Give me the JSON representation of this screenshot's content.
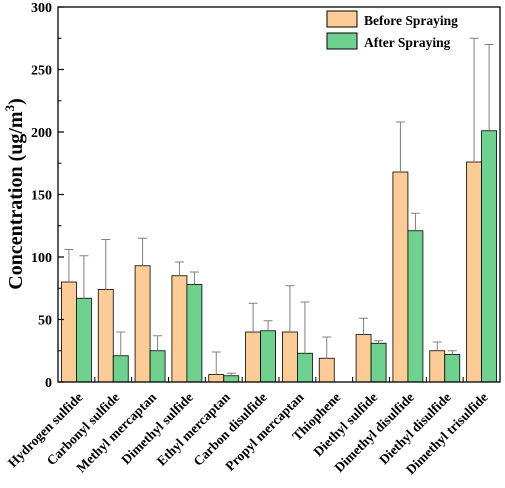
{
  "chart_data": {
    "type": "bar",
    "ylabel": "Concentration (ug/m³)",
    "ylabel_parts": {
      "main": "Concentration (ug/m",
      "sup": "3",
      "close": ")"
    },
    "ylim": [
      0,
      300
    ],
    "yticks": [
      0,
      50,
      100,
      150,
      200,
      250,
      300
    ],
    "categories": [
      "Hydrogen sulfide",
      "Carbonyl sulfide",
      "Methyl mercaptan",
      "Dimethyl sulfide",
      "Ethyl mercaptan",
      "Carbon disulfide",
      "Propyl mercaptan",
      "Thiophene",
      "Diethyl sulfide",
      "Dimethyl disulfide",
      "Diethyl disulfide",
      "Dimethyl trisulfide"
    ],
    "series": [
      {
        "name": "Before Spraying",
        "color": "#FDCC96",
        "values": [
          80,
          74,
          93,
          85,
          6,
          40,
          40,
          19,
          38,
          168,
          25,
          176
        ],
        "error": [
          26,
          40,
          22,
          11,
          18,
          23,
          37,
          17,
          13,
          40,
          7,
          99
        ]
      },
      {
        "name": "After Spraying",
        "color": "#6FD18E",
        "values": [
          67,
          21,
          25,
          78,
          5,
          41,
          23,
          0,
          31,
          121,
          22,
          201
        ],
        "error": [
          34,
          19,
          12,
          10,
          2,
          8,
          41,
          0,
          2,
          14,
          3,
          69
        ]
      }
    ],
    "legend_position": "top-right",
    "grid": false,
    "axis_color": "#000000"
  }
}
